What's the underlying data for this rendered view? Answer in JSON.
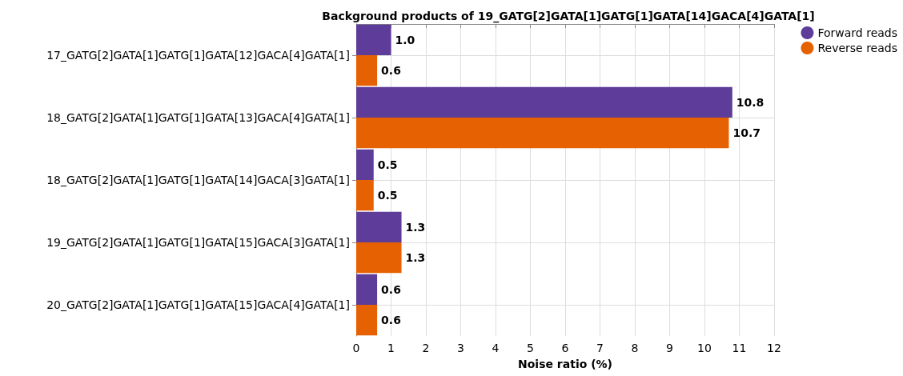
{
  "chart_data": {
    "type": "bar",
    "orientation": "horizontal",
    "title": "Background products of 19_GATG[2]GATA[1]GATG[1]GATA[14]GACA[4]GATA[1]",
    "xlabel": "Noise ratio (%)",
    "categories": [
      "17_GATG[2]GATA[1]GATG[1]GATA[12]GACA[4]GATA[1]",
      "18_GATG[2]GATA[1]GATG[1]GATA[13]GACA[4]GATA[1]",
      "18_GATG[2]GATA[1]GATG[1]GATA[14]GACA[3]GATA[1]",
      "19_GATG[2]GATA[1]GATG[1]GATA[15]GACA[3]GATA[1]",
      "20_GATG[2]GATA[1]GATG[1]GATA[15]GACA[4]GATA[1]"
    ],
    "series": [
      {
        "name": "Forward reads",
        "color": "#5e3c99",
        "values": [
          1.0,
          10.8,
          0.5,
          1.3,
          0.6
        ],
        "value_labels": [
          "1.0",
          "10.8",
          "0.5",
          "1.3",
          "0.6"
        ]
      },
      {
        "name": "Reverse reads",
        "color": "#e66101",
        "values": [
          0.6,
          10.7,
          0.5,
          1.3,
          0.6
        ],
        "value_labels": [
          "0.6",
          "10.7",
          "0.5",
          "1.3",
          "0.6"
        ]
      }
    ],
    "xlim": [
      0,
      12
    ],
    "xticks": [
      0,
      1,
      2,
      3,
      4,
      5,
      6,
      7,
      8,
      9,
      10,
      11,
      12
    ],
    "grid": true,
    "legend": "top right"
  }
}
